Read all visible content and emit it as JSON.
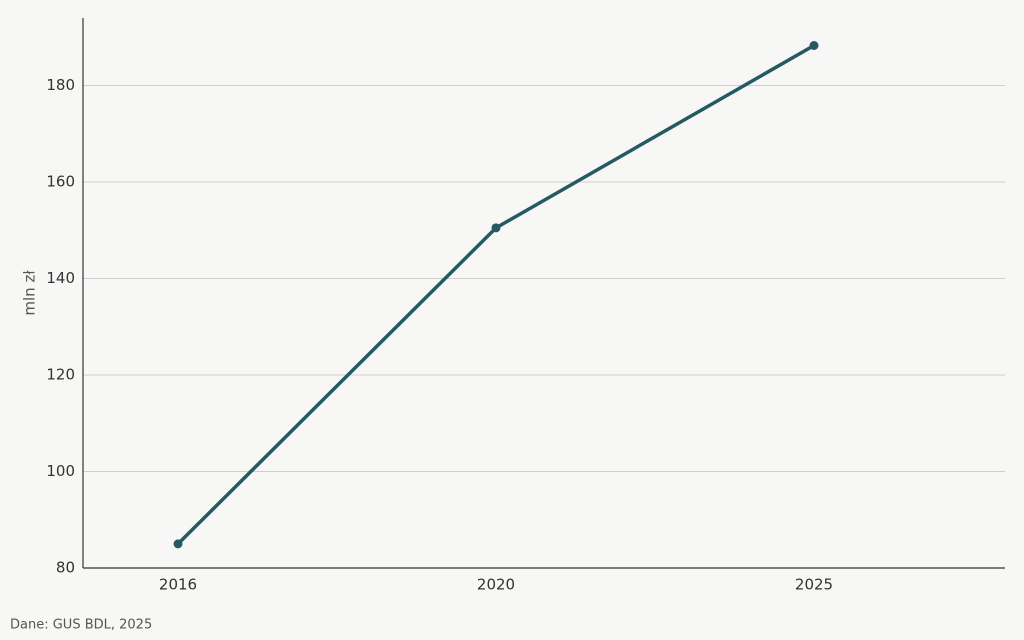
{
  "chart_data": {
    "type": "line",
    "y_label": "mln zł",
    "source": "Dane: GUS BDL, 2025",
    "categories": [
      "2016",
      "2020",
      "2025"
    ],
    "series": [
      {
        "name": "mln zł",
        "color": "#245a62",
        "values": [
          85,
          150.5,
          188.3
        ]
      }
    ],
    "ylim": [
      80,
      194
    ],
    "yticks": [
      80,
      100,
      120,
      140,
      160,
      180
    ],
    "grid": true
  }
}
